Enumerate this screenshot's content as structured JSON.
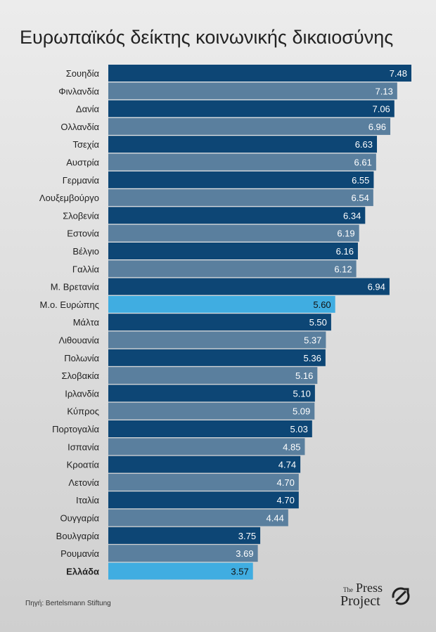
{
  "title": "Ευρωπαϊκός δείκτης κοινωνικής δικαιοσύνης",
  "source": "Πηγή: Bertelsmann Stiftung",
  "logo": {
    "the": "The",
    "press": "Press",
    "project": "Project"
  },
  "colors": {
    "dark": "#0d4675",
    "light": "#5a7f9e",
    "highlight": "#40ade1"
  },
  "chart_data": {
    "type": "bar",
    "orientation": "horizontal",
    "title": "Ευρωπαϊκός δείκτης κοινωνικής δικαιοσύνης",
    "categories": [
      "Σουηδία",
      "Φινλανδία",
      "Δανία",
      "Ολλανδία",
      "Τσεχία",
      "Αυστρία",
      "Γερμανία",
      "Λουξεμβούργο",
      "Σλοβενία",
      "Εστονία",
      "Βέλγιο",
      "Γαλλία",
      "Μ. Βρετανία",
      "Μ.ο. Ευρώπης",
      "Μάλτα",
      "Λιθουανία",
      "Πολωνία",
      "Σλοβακία",
      "Ιρλανδία",
      "Κύπρος",
      "Πορτογαλία",
      "Ισπανία",
      "Κροατία",
      "Λετονία",
      "Ιταλία",
      "Ουγγαρία",
      "Βουλγαρία",
      "Ρουμανία",
      "Ελλάδα"
    ],
    "value_labels": [
      "7.48",
      "7.13",
      "7.06",
      "6.96",
      "6.63",
      "6.61",
      "6.55",
      "6.54",
      "6.34",
      "6.19",
      "6.16",
      "6.12",
      "6.94",
      "5.60",
      "5.50",
      "5.37",
      "5.36",
      "5.16",
      "5.10",
      "5.09",
      "5.03",
      "4.85",
      "4.74",
      "4.70",
      "4.70",
      "4.44",
      "3.75",
      "3.69",
      "3.57"
    ],
    "values": [
      7.48,
      7.13,
      7.06,
      6.96,
      6.63,
      6.61,
      6.55,
      6.54,
      6.34,
      6.19,
      6.16,
      6.12,
      6.94,
      5.6,
      5.5,
      5.37,
      5.36,
      5.16,
      5.1,
      5.09,
      5.03,
      4.85,
      4.74,
      4.7,
      4.7,
      4.44,
      3.75,
      3.69,
      3.57
    ],
    "highlighted": [
      "Μ.ο. Ευρώπης",
      "Ελλάδα"
    ],
    "bold_labels": [
      "Ελλάδα"
    ],
    "xlim": [
      0,
      7.48
    ]
  }
}
